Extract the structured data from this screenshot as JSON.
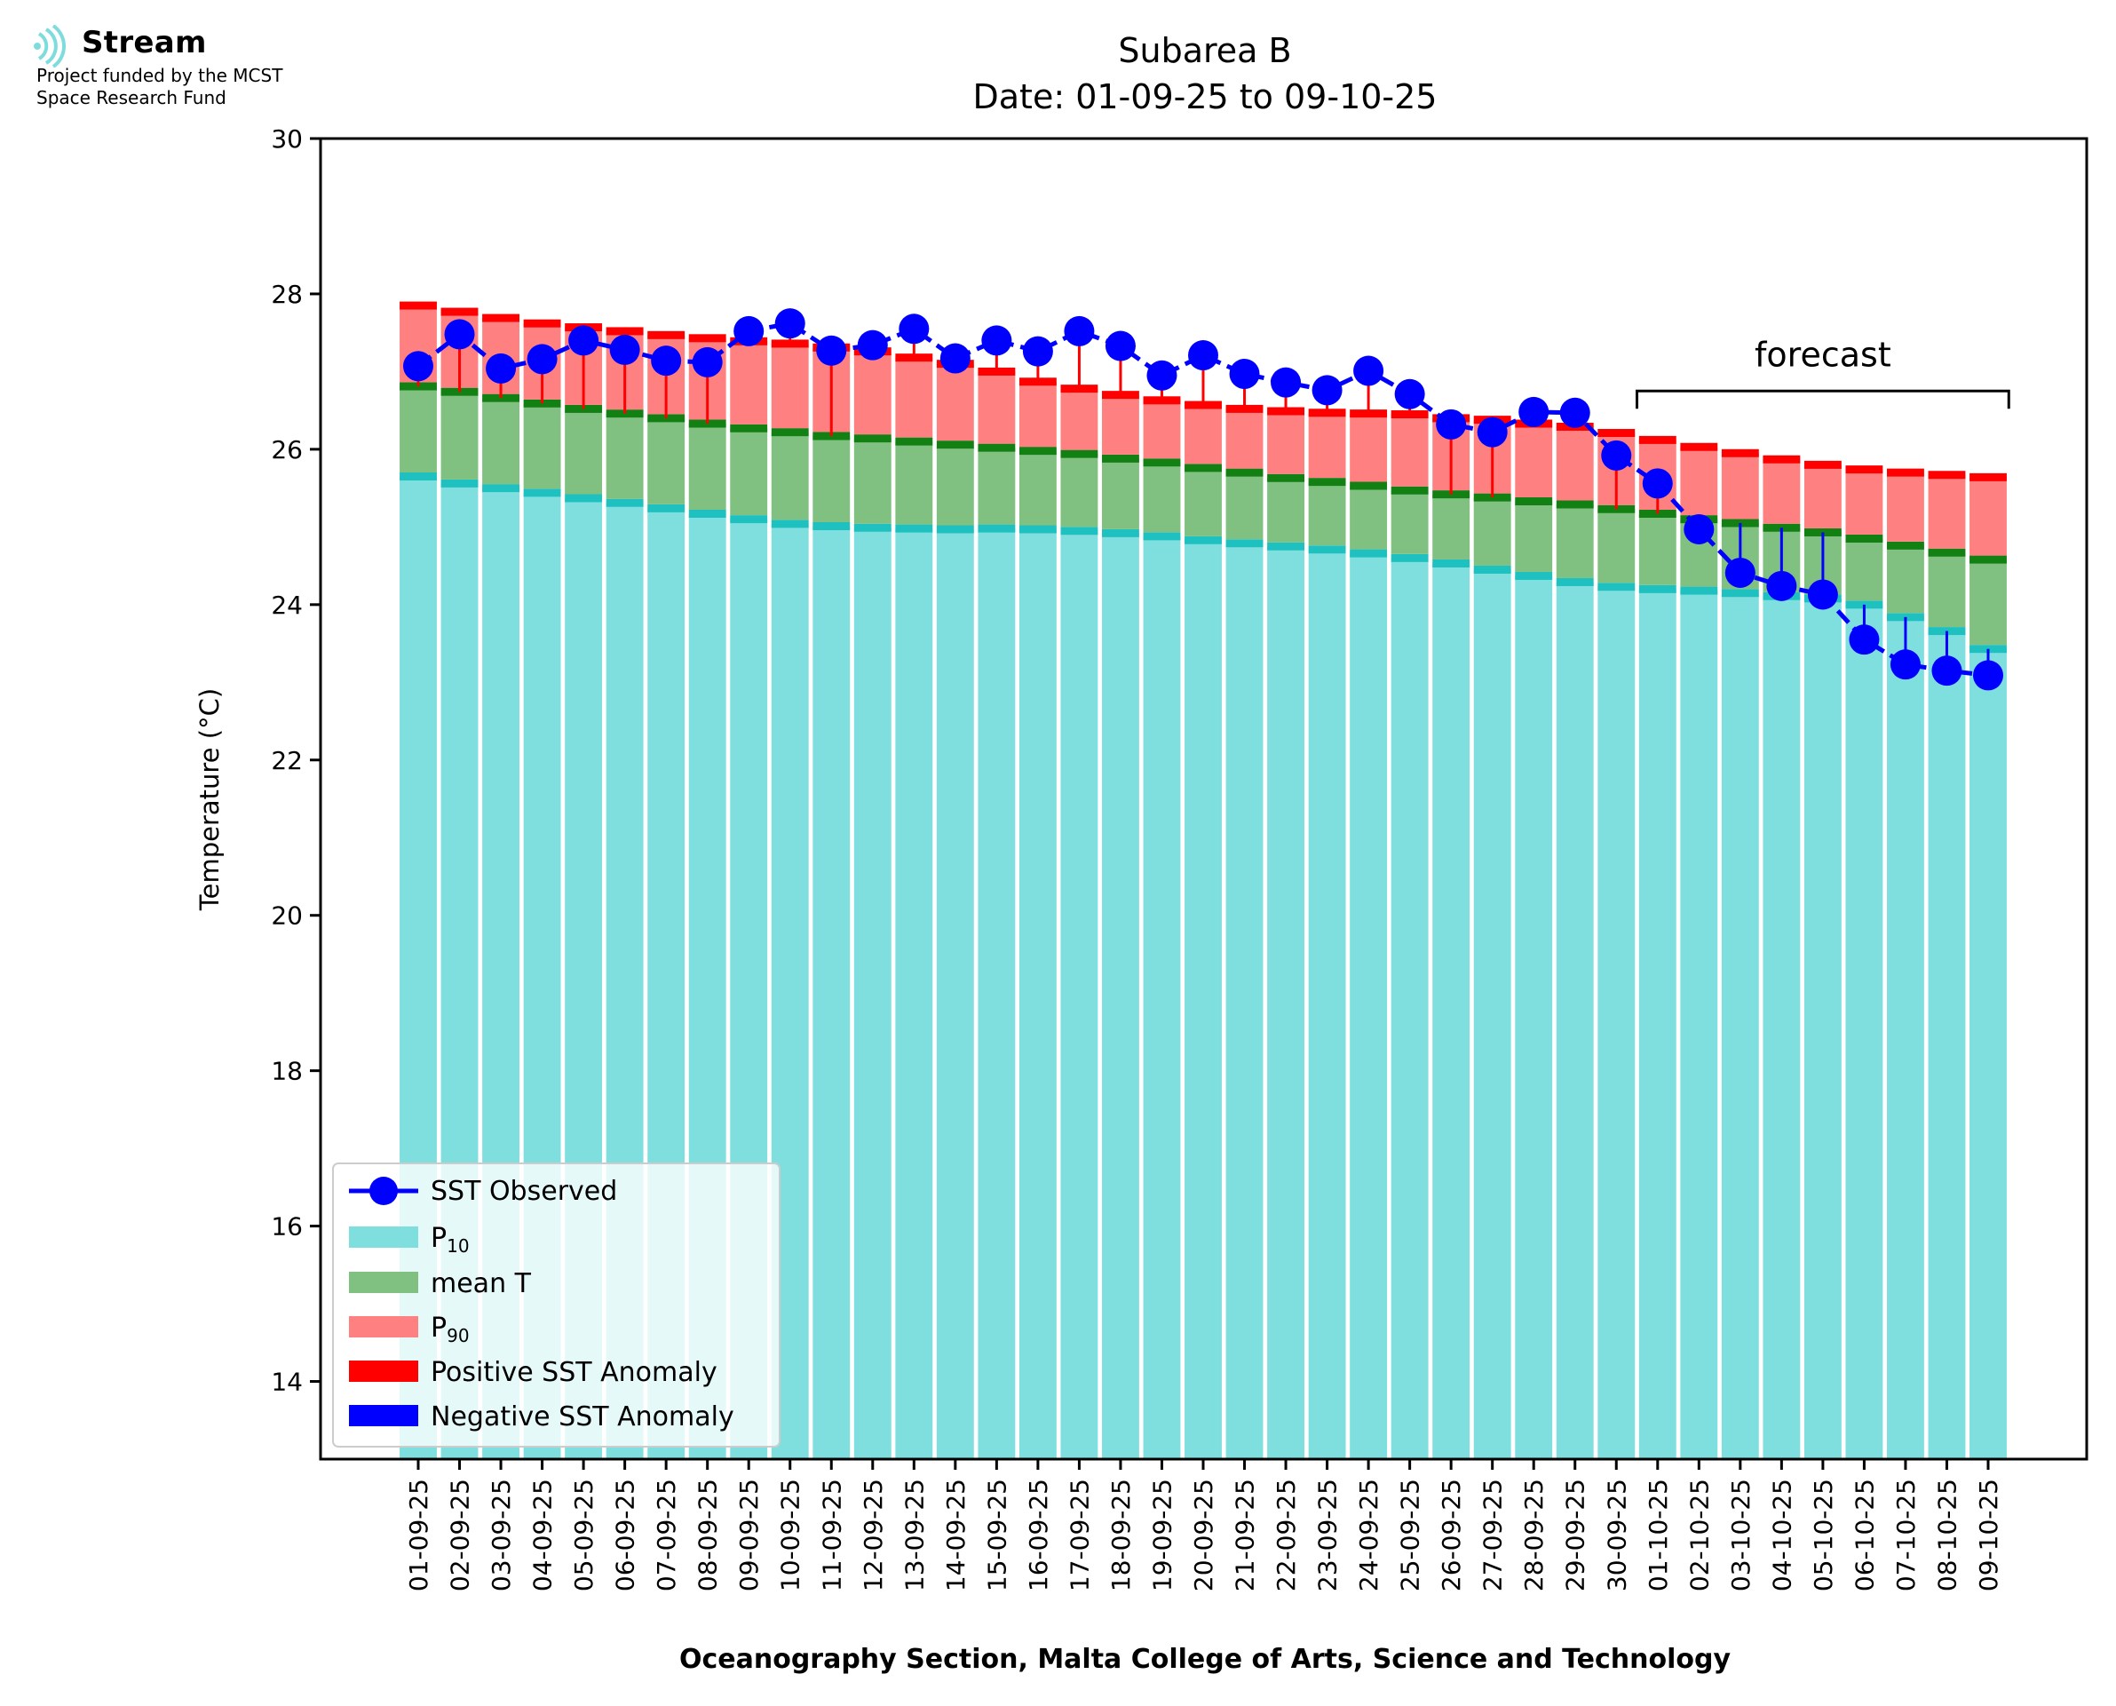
{
  "logo": {
    "name": "Stream",
    "subtitle_line1": "Project funded by the MCST",
    "subtitle_line2": "Space Research Fund",
    "icon": "signal-waves-icon",
    "color": "#7fdcdc"
  },
  "chart_data": {
    "type": "bar",
    "title": "Subarea B",
    "subtitle": "Date: 01-09-25 to 09-10-25",
    "xlabel": "Oceanography Section, Malta College of Arts, Science and Technology",
    "ylabel": "Temperature (°C)",
    "ylim": [
      13,
      30
    ],
    "yticks": [
      14,
      16,
      18,
      20,
      22,
      24,
      26,
      28,
      30
    ],
    "grid": false,
    "legend_position": "lower-left",
    "forecast_label": "forecast",
    "forecast_start": "01-10-25",
    "forecast_end": "09-10-25",
    "categories": [
      "01-09-25",
      "02-09-25",
      "03-09-25",
      "04-09-25",
      "05-09-25",
      "06-09-25",
      "07-09-25",
      "08-09-25",
      "09-09-25",
      "10-09-25",
      "11-09-25",
      "12-09-25",
      "13-09-25",
      "14-09-25",
      "15-09-25",
      "16-09-25",
      "17-09-25",
      "18-09-25",
      "19-09-25",
      "20-09-25",
      "21-09-25",
      "22-09-25",
      "23-09-25",
      "24-09-25",
      "25-09-25",
      "26-09-25",
      "27-09-25",
      "28-09-25",
      "29-09-25",
      "30-09-25",
      "01-10-25",
      "02-10-25",
      "03-10-25",
      "04-10-25",
      "05-10-25",
      "06-10-25",
      "07-10-25",
      "08-10-25",
      "09-10-25"
    ],
    "series": [
      {
        "name": "SST Observed",
        "color": "#0000ff",
        "values": [
          27.07,
          27.48,
          27.04,
          27.16,
          27.4,
          27.28,
          27.14,
          27.12,
          27.52,
          27.62,
          27.27,
          27.34,
          27.55,
          27.17,
          27.4,
          27.26,
          27.52,
          27.33,
          26.95,
          27.21,
          26.97,
          26.86,
          26.76,
          27.01,
          26.71,
          26.32,
          26.22,
          26.48,
          26.47,
          25.92,
          25.56,
          24.97,
          24.41,
          24.24,
          24.13,
          23.55,
          23.23,
          23.15,
          23.09
        ]
      },
      {
        "name": "P10",
        "color": "#7fdfdf",
        "edge_color": "#1fc0c0",
        "values": [
          25.65,
          25.56,
          25.5,
          25.44,
          25.37,
          25.31,
          25.24,
          25.17,
          25.1,
          25.04,
          25.01,
          24.99,
          24.98,
          24.97,
          24.98,
          24.97,
          24.95,
          24.92,
          24.88,
          24.83,
          24.79,
          24.75,
          24.71,
          24.66,
          24.6,
          24.53,
          24.45,
          24.37,
          24.29,
          24.23,
          24.2,
          24.18,
          24.15,
          24.11,
          24.08,
          24.0,
          23.84,
          23.66,
          23.43
        ]
      },
      {
        "name": "mean T",
        "color": "#80c080",
        "edge_color": "#138013",
        "values": [
          26.81,
          26.74,
          26.66,
          26.59,
          26.52,
          26.46,
          26.4,
          26.33,
          26.27,
          26.22,
          26.17,
          26.14,
          26.1,
          26.06,
          26.02,
          25.98,
          25.94,
          25.88,
          25.83,
          25.76,
          25.7,
          25.63,
          25.58,
          25.53,
          25.47,
          25.42,
          25.38,
          25.33,
          25.29,
          25.23,
          25.17,
          25.1,
          25.05,
          24.99,
          24.93,
          24.85,
          24.76,
          24.67,
          24.58
        ]
      },
      {
        "name": "P90",
        "color": "#ff8080",
        "edge_color": "#ff0000",
        "values": [
          27.85,
          27.77,
          27.69,
          27.62,
          27.57,
          27.52,
          27.47,
          27.43,
          27.39,
          27.36,
          27.31,
          27.26,
          27.18,
          27.1,
          27.0,
          26.87,
          26.78,
          26.7,
          26.63,
          26.57,
          26.52,
          26.49,
          26.47,
          26.46,
          26.45,
          26.4,
          26.38,
          26.33,
          26.29,
          26.21,
          26.12,
          26.03,
          25.95,
          25.87,
          25.8,
          25.74,
          25.7,
          25.67,
          25.64
        ]
      },
      {
        "name": "Positive SST Anomaly",
        "color": "#ff0000"
      },
      {
        "name": "Negative SST Anomaly",
        "color": "#0000ff"
      }
    ]
  }
}
